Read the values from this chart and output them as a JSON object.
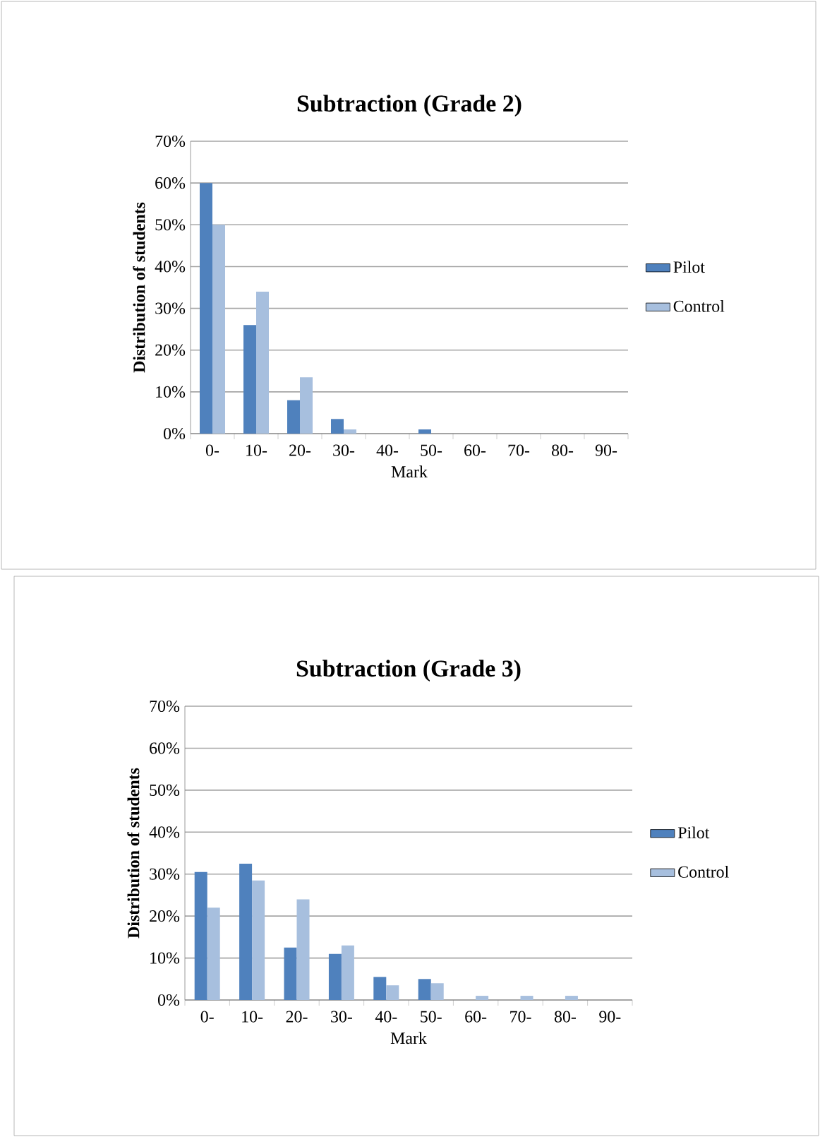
{
  "chart_data": [
    {
      "type": "bar",
      "title": "Subtraction (Grade 2)",
      "xlabel": "Mark",
      "ylabel": "Distribution of students",
      "categories": [
        "0-",
        "10-",
        "20-",
        "30-",
        "40-",
        "50-",
        "60-",
        "70-",
        "80-",
        "90-"
      ],
      "series": [
        {
          "name": "Pilot",
          "color": "#4f81bd",
          "values": [
            60,
            26,
            8,
            3.5,
            0,
            1,
            0,
            0,
            0,
            0
          ]
        },
        {
          "name": "Control",
          "color": "#a7bfde",
          "values": [
            50,
            34,
            13.5,
            1,
            0,
            0,
            0,
            0,
            0,
            0
          ]
        }
      ],
      "ylim": [
        0,
        70
      ],
      "yticks": [
        {
          "value": 0,
          "label": "0%"
        },
        {
          "value": 10,
          "label": "10%"
        },
        {
          "value": 20,
          "label": "20%"
        },
        {
          "value": 30,
          "label": "30%"
        },
        {
          "value": 40,
          "label": "40%"
        },
        {
          "value": 50,
          "label": "50%"
        },
        {
          "value": 60,
          "label": "60%"
        },
        {
          "value": 70,
          "label": "70%"
        }
      ],
      "grid": "y",
      "legend": "right"
    },
    {
      "type": "bar",
      "title": "Subtraction (Grade 3)",
      "xlabel": "Mark",
      "ylabel": "Distribution of students",
      "categories": [
        "0-",
        "10-",
        "20-",
        "30-",
        "40-",
        "50-",
        "60-",
        "70-",
        "80-",
        "90-"
      ],
      "series": [
        {
          "name": "Pilot",
          "color": "#4f81bd",
          "values": [
            30.5,
            32.5,
            12.5,
            11,
            5.5,
            5,
            0,
            0,
            0,
            0
          ]
        },
        {
          "name": "Control",
          "color": "#a7bfde",
          "values": [
            22,
            28.5,
            24,
            13,
            3.5,
            4,
            1,
            1,
            1,
            0
          ]
        }
      ],
      "ylim": [
        0,
        70
      ],
      "yticks": [
        {
          "value": 0,
          "label": "0%"
        },
        {
          "value": 10,
          "label": "10%"
        },
        {
          "value": 20,
          "label": "20%"
        },
        {
          "value": 30,
          "label": "30%"
        },
        {
          "value": 40,
          "label": "40%"
        },
        {
          "value": 50,
          "label": "50%"
        },
        {
          "value": 60,
          "label": "60%"
        },
        {
          "value": 70,
          "label": "70%"
        }
      ],
      "grid": "y",
      "legend": "right"
    }
  ]
}
